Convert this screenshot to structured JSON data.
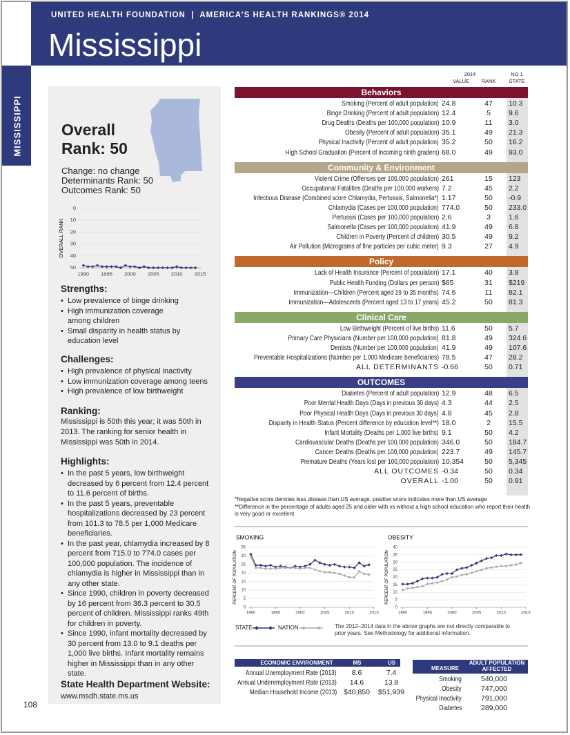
{
  "header": {
    "org": "UNITED HEALTH FOUNDATION  |  AMERICA’S HEALTH RANKINGS® 2014",
    "state": "Mississippi"
  },
  "side_tab": "MISSISSIPPI",
  "sidebar": {
    "overall": [
      "Overall",
      "Rank: 50"
    ],
    "changes": [
      "Change: no change",
      "Determinants Rank: 50",
      "Outcomes Rank: 50"
    ],
    "strengths": {
      "heading": "Strengths:",
      "items": [
        "Low prevalence of binge drinking",
        "High immunization coverage among children",
        "Small disparity in health status by education level"
      ]
    },
    "challenges": {
      "heading": "Challenges:",
      "items": [
        "High prevalence of physical inactivity",
        "Low immunization coverage among teens",
        "High prevalence of low birthweight"
      ]
    },
    "ranking": {
      "heading": "Ranking:",
      "text": "Mississippi is 50th this year; it was 50th in 2013. The ranking for senior health in Mississippi was 50th in 2014."
    },
    "highlights": {
      "heading": "Highlights:",
      "items": [
        "In the past 5 years, low birthweight decreased by 6 percent from 12.4 percent to 11.6 percent of births.",
        "In the past 5 years, preventable hospitalizations decreased by 23 percent from 101.3 to 78.5 per 1,000 Medicare beneficiaries.",
        "In the past year, chlamydia increased by 8 percent from 715.0 to 774.0 cases per 100,000 population. The incidence of chlamydia is higher in Mississippi than in any other state.",
        "Since 1990, children in poverty decreased by 16 percent from 36.3 percent to 30.5 percent of children. Mississippi ranks 49th for children in poverty.",
        "Since 1990, infant mortality decreased by 30 percent from 13.0 to 9.1 deaths per 1,000 live births. Infant mortality remains higher in Mississippi than in any other state."
      ]
    },
    "website": {
      "heading": "State Health Department Website:",
      "url": "www.msdh.state.ms.us"
    }
  },
  "rank_chart": {
    "type": "line",
    "ylabel": "OVERALL RANK",
    "color": "#2e3a7c",
    "x": [
      1990,
      1991,
      1992,
      1993,
      1994,
      1995,
      1996,
      1997,
      1998,
      1999,
      2000,
      2001,
      2002,
      2003,
      2004,
      2005,
      2006,
      2007,
      2008,
      2009,
      2010,
      2011,
      2012,
      2013,
      2014
    ],
    "values": [
      48,
      49,
      49,
      48,
      49,
      49,
      49,
      49,
      50,
      48,
      49,
      49,
      50,
      49,
      50,
      50,
      50,
      50,
      50,
      50,
      49,
      50,
      50,
      50,
      50
    ],
    "xlim": [
      1989,
      2015
    ],
    "xticks": [
      1990,
      1995,
      2000,
      2005,
      2010,
      2015
    ],
    "ylim": [
      50,
      0
    ],
    "yticks": [
      0,
      10,
      20,
      30,
      40,
      50
    ],
    "grid": true
  },
  "table": {
    "col_year": "2014",
    "col_value": "VALUE",
    "col_rank": "RANK",
    "col_no1": [
      "NO 1",
      "STATE"
    ],
    "sections": [
      {
        "title": "Behaviors",
        "color": "#7b1230",
        "rows": [
          [
            "Smoking (Percent of adult population)",
            "24.8",
            "47",
            "10.3"
          ],
          [
            "Binge Drinking (Percent of adult population)",
            "12.4",
            "5",
            "9.6"
          ],
          [
            "Drug Deaths (Deaths per 100,000 population)",
            "10.9",
            "11",
            "3.0"
          ],
          [
            "Obesity (Percent of adult population)",
            "35.1",
            "49",
            "21.3"
          ],
          [
            "Physical Inactivity (Percent of adult population)",
            "35.2",
            "50",
            "16.2"
          ],
          [
            "High School Graduation (Percent of incoming ninth graders)",
            "68.0",
            "49",
            "93.0"
          ]
        ]
      },
      {
        "title": "Community & Environment",
        "color": "#b3a68a",
        "rows": [
          [
            "Violent Crime (Offenses per 100,000 population)",
            "261",
            "15",
            "123"
          ],
          [
            "Occupational Fatalities (Deaths per 100,000 workers)",
            "7.2",
            "45",
            "2.2"
          ],
          [
            "Infectious Disease (Combined score Chlamydia, Pertussis, Salmonella*)",
            "1.17",
            "50",
            "-0.9"
          ],
          [
            "Chlamydia (Cases per 100,000 population)",
            "774.0",
            "50",
            "233.0"
          ],
          [
            "Pertussis (Cases per 100,000 population)",
            "2.6",
            "3",
            "1.6"
          ],
          [
            "Salmonella (Cases per 100,000 population)",
            "41.9",
            "49",
            "6.8"
          ],
          [
            "Children in Poverty (Percent of children)",
            "30.5",
            "49",
            "9.2"
          ],
          [
            "Air Pollution (Micrograms of fine particles per cubic meter)",
            "9.3",
            "27",
            "4.9"
          ]
        ]
      },
      {
        "title": "Policy",
        "color": "#c0692a",
        "rows": [
          [
            "Lack of Health Insurance (Percent of population)",
            "17.1",
            "40",
            "3.8"
          ],
          [
            "Public Health Funding (Dollars per person)",
            "$65",
            "31",
            "$219"
          ],
          [
            "Immunization—Children (Percent aged 19 to 35 months)",
            "74.6",
            "11",
            "82.1"
          ],
          [
            "Immunization—Adolescents (Percent aged 13 to 17 years)",
            "45.2",
            "50",
            "81.3"
          ]
        ]
      },
      {
        "title": "Clinical Care",
        "color": "#8aa86a",
        "rows": [
          [
            "Low Birthweight (Percent of live births)",
            "11.6",
            "50",
            "5.7"
          ],
          [
            "Primary Care Physicians (Number per 100,000 population)",
            "81.8",
            "49",
            "324.6"
          ],
          [
            "Dentists (Number per 100,000 population)",
            "41.9",
            "49",
            "107.6"
          ],
          [
            "Preventable Hospitalizations (Number per 1,000 Medicare beneficiaries)",
            "78.5",
            "47",
            "28.2"
          ]
        ],
        "totals": [
          [
            "ALL DETERMINANTS",
            "-0.66",
            "50",
            "0.71"
          ]
        ]
      },
      {
        "title": "OUTCOMES",
        "color": "#3a3f85",
        "rows": [
          [
            "Diabetes (Percent of adult population)",
            "12.9",
            "48",
            "6.5"
          ],
          [
            "Poor Mental Health Days (Days in previous 30 days)",
            "4.3",
            "44",
            "2.5"
          ],
          [
            "Poor Physical Health Days (Days in previous 30 days)",
            "4.8",
            "45",
            "2.8"
          ],
          [
            "Disparity in Health Status (Percent difference by education level**)",
            "18.0",
            "2",
            "15.5"
          ],
          [
            "Infant Mortality (Deaths per 1,000 live births)",
            "9.1",
            "50",
            "4.2"
          ],
          [
            "Cardiovascular Deaths (Deaths per 100,000 population)",
            "346.0",
            "50",
            "184.7"
          ],
          [
            "Cancer Deaths (Deaths per 100,000 population)",
            "223.7",
            "49",
            "145.7"
          ],
          [
            "Premature Deaths (Years lost per 100,000 population)",
            "10,354",
            "50",
            "5,345"
          ]
        ],
        "totals": [
          [
            "ALL OUTCOMES",
            "-0.34",
            "50",
            "0.34"
          ],
          [
            "OVERALL",
            "-1.00",
            "50",
            "0.91"
          ]
        ]
      }
    ],
    "notes": [
      "*Negative score denotes less disease than US average, positive score indicates more than US average",
      "**Difference in the percentage of adults aged 25 and older with vs without a high school education who report their health is very good or excellent"
    ]
  },
  "charts": [
    {
      "type": "line",
      "title": "SMOKING",
      "ylabel": "PERCENT OF POPULATION",
      "x": [
        1990,
        1991,
        1992,
        1993,
        1994,
        1995,
        1996,
        1997,
        1998,
        1999,
        2000,
        2001,
        2002,
        2003,
        2004,
        2005,
        2006,
        2007,
        2008,
        2009,
        2010,
        2011,
        2012,
        2013,
        2014
      ],
      "series": [
        {
          "name": "STATE",
          "color": "#2e3a7c",
          "marker": "diamond",
          "values": [
            31,
            24.5,
            24.5,
            24,
            24.5,
            23.5,
            24,
            23.5,
            23,
            24,
            23.5,
            24,
            25,
            27.5,
            26,
            25,
            24.5,
            25,
            24,
            23.5,
            23.5,
            23,
            26,
            24,
            24.8
          ]
        },
        {
          "name": "NATION",
          "color": "#aaaaaa",
          "marker": "circle",
          "values": [
            29.5,
            23,
            23,
            22.5,
            22.5,
            22.5,
            23,
            23,
            23,
            23,
            22.5,
            23,
            23,
            22,
            21,
            20.5,
            20.5,
            20,
            19.5,
            18.5,
            17.5,
            17.5,
            21,
            19.5,
            19
          ]
        }
      ],
      "xlim": [
        1989.5,
        2015
      ],
      "xticks": [
        1990,
        1995,
        2000,
        2005,
        2010,
        2015
      ],
      "ylim": [
        0,
        35
      ],
      "yticks": [
        0,
        5,
        10,
        15,
        20,
        25,
        30,
        35
      ],
      "grid": true
    },
    {
      "type": "line",
      "title": "OBESITY",
      "ylabel": "PERCENT OF POPULATION",
      "x": [
        1990,
        1991,
        1992,
        1993,
        1994,
        1995,
        1996,
        1997,
        1998,
        1999,
        2000,
        2001,
        2002,
        2003,
        2004,
        2005,
        2006,
        2007,
        2008,
        2009,
        2010,
        2011,
        2012,
        2013,
        2014
      ],
      "series": [
        {
          "name": "STATE",
          "color": "#2e3a7c",
          "marker": "diamond",
          "values": [
            15.5,
            15.5,
            16,
            17.5,
            19,
            19.5,
            19.5,
            20,
            22,
            22.5,
            22.5,
            25,
            26,
            26.5,
            28,
            29.5,
            31,
            32.5,
            33,
            34.5,
            34.5,
            35.5,
            35,
            35,
            35.1
          ]
        },
        {
          "name": "NATION",
          "color": "#aaaaaa",
          "marker": "circle",
          "values": [
            11.5,
            12.5,
            13,
            13.5,
            14,
            15.5,
            16,
            16.5,
            17.5,
            18.5,
            20,
            20.5,
            21.5,
            22,
            23,
            24,
            25,
            26,
            26.5,
            27,
            27.5,
            27.5,
            28,
            28.5,
            29.5
          ]
        }
      ],
      "xlim": [
        1989.5,
        2015
      ],
      "xticks": [
        1990,
        1995,
        2000,
        2005,
        2010,
        2015
      ],
      "ylim": [
        0,
        40
      ],
      "yticks": [
        0,
        5,
        10,
        15,
        20,
        25,
        30,
        35,
        40
      ],
      "grid": true
    }
  ],
  "chart_note": "The 2012–2014 data in the above graphs are not directly comparable to prior years. See Methodology for additional information.",
  "economic": {
    "headers": [
      "ECONOMIC ENVIRONMENT",
      "MS",
      "US"
    ],
    "rows": [
      [
        "Annual Unemployment Rate (2013)",
        "8.6",
        "7.4"
      ],
      [
        "Annual Underemployment Rate (2013)",
        "14.6",
        "13.8"
      ],
      [
        "Median Household Income (2013)",
        "$40,850",
        "$51,939"
      ]
    ]
  },
  "adult_population": {
    "headers": [
      "MEASURE",
      "ADULT POPULATION AFFECTED"
    ],
    "rows": [
      [
        "Smoking",
        "540,000"
      ],
      [
        "Obesity",
        "747,000"
      ],
      [
        "Physical Inactivity",
        "791,000"
      ],
      [
        "Diabetes",
        "289,000"
      ]
    ]
  },
  "page_number": "108"
}
